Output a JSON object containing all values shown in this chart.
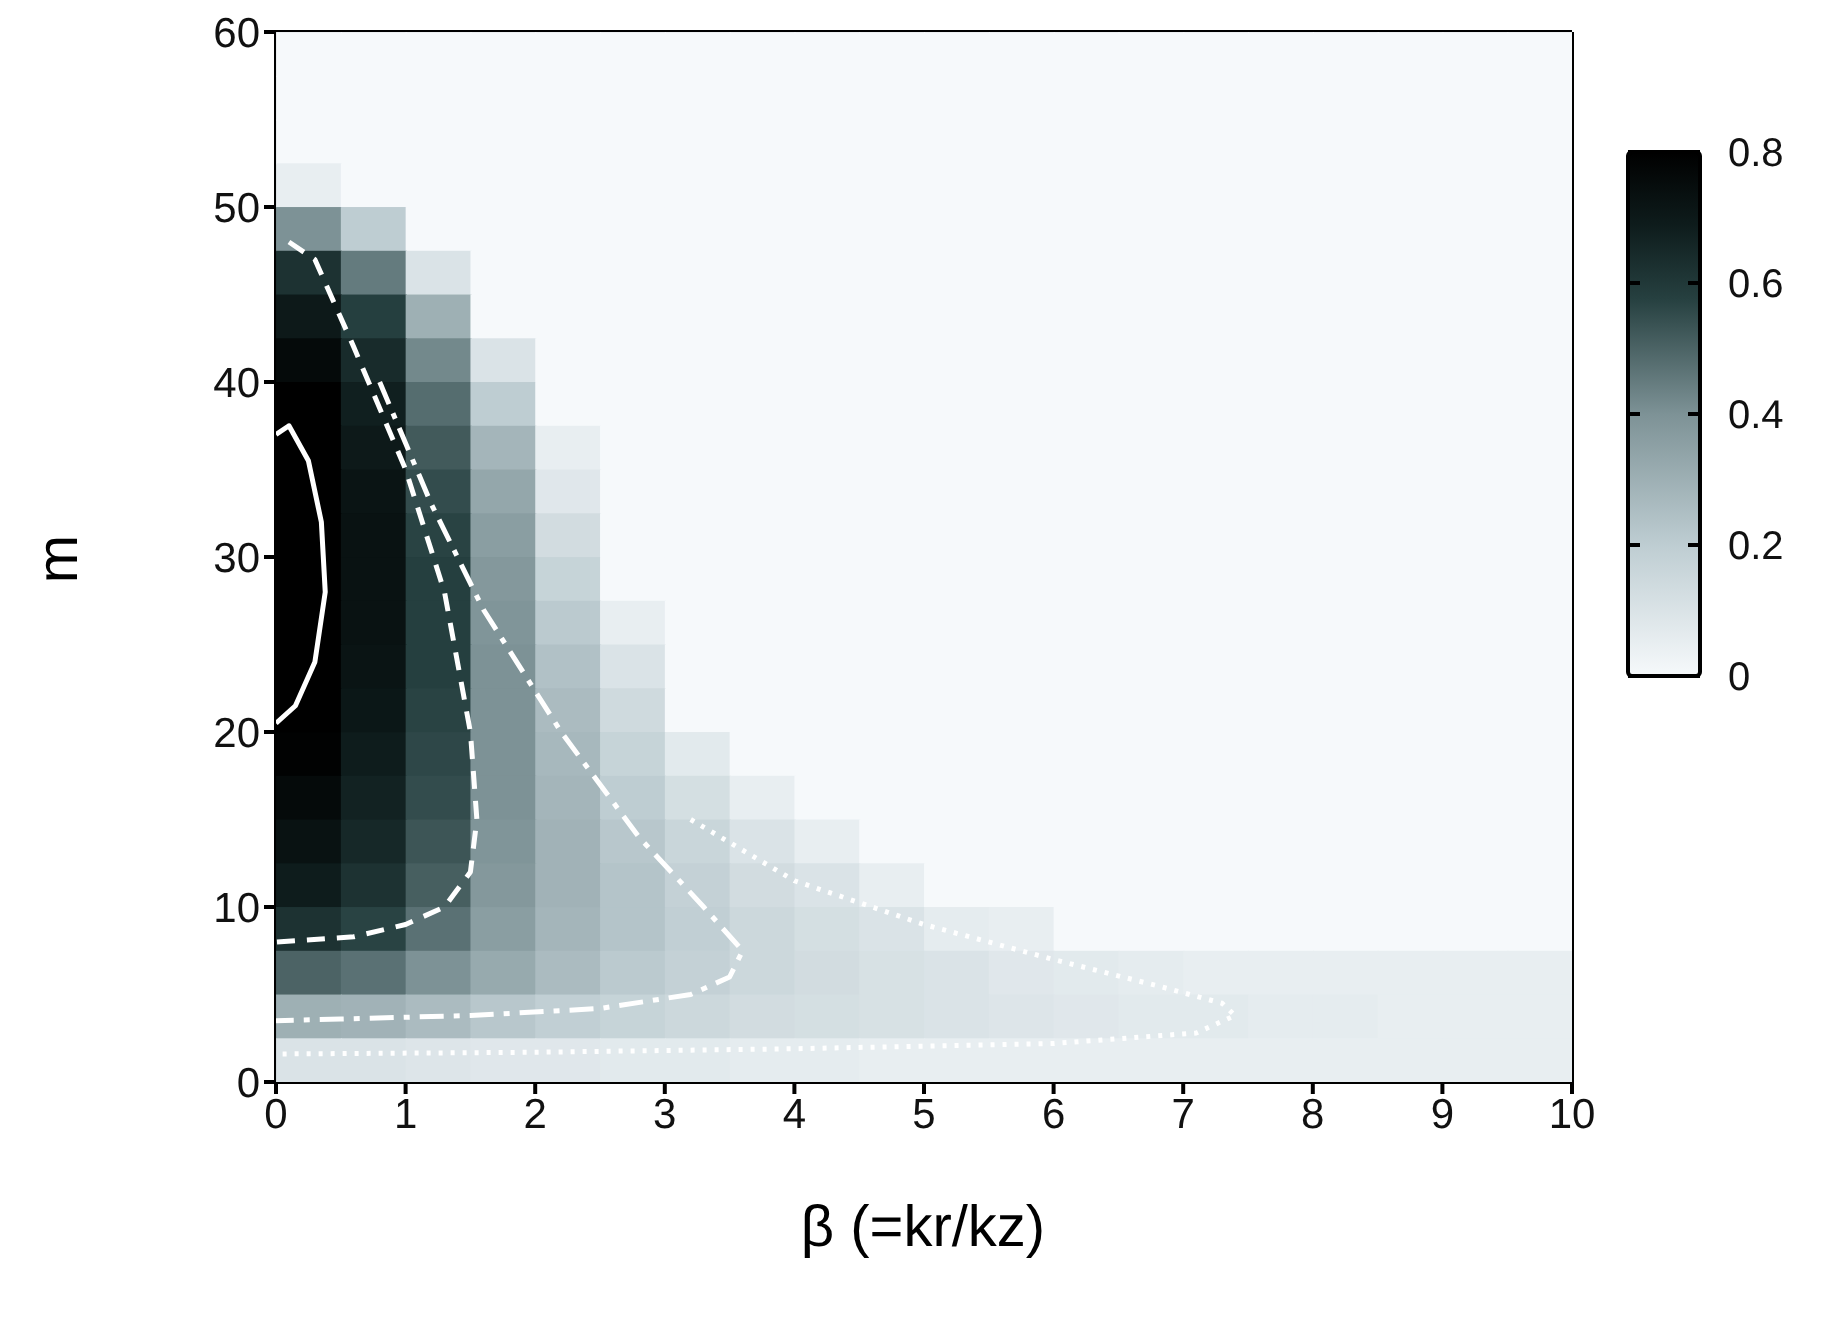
{
  "chart_data": {
    "type": "heatmap",
    "xlabel": "β (=kr/kz)",
    "ylabel": "m",
    "xlim": [
      0,
      10
    ],
    "xticks": [
      0,
      1,
      2,
      3,
      4,
      5,
      6,
      7,
      8,
      9,
      10
    ],
    "ylim": [
      0,
      60
    ],
    "yticks": [
      0,
      10,
      20,
      30,
      40,
      50,
      60
    ],
    "clim": [
      0,
      0.8
    ],
    "cticks": [
      0,
      0.2,
      0.4,
      0.6,
      0.8
    ],
    "cells": [
      [
        0,
        0,
        0,
        0,
        0,
        0,
        0,
        0,
        0,
        0,
        0,
        0,
        0,
        0,
        0,
        0,
        0,
        0,
        0,
        0
      ],
      [
        0,
        0,
        0,
        0,
        0,
        0,
        0,
        0,
        0,
        0,
        0,
        0,
        0,
        0,
        0,
        0,
        0,
        0,
        0,
        0
      ],
      [
        0,
        0,
        0,
        0,
        0,
        0,
        0,
        0,
        0,
        0,
        0,
        0,
        0,
        0,
        0,
        0,
        0,
        0,
        0,
        0
      ],
      [
        0.05,
        0,
        0,
        0,
        0,
        0,
        0,
        0,
        0,
        0,
        0,
        0,
        0,
        0,
        0,
        0,
        0,
        0,
        0,
        0
      ],
      [
        0.4,
        0.2,
        0,
        0,
        0,
        0,
        0,
        0,
        0,
        0,
        0,
        0,
        0,
        0,
        0,
        0,
        0,
        0,
        0,
        0
      ],
      [
        0.62,
        0.45,
        0.1,
        0,
        0,
        0,
        0,
        0,
        0,
        0,
        0,
        0,
        0,
        0,
        0,
        0,
        0,
        0,
        0,
        0
      ],
      [
        0.7,
        0.58,
        0.3,
        0,
        0,
        0,
        0,
        0,
        0,
        0,
        0,
        0,
        0,
        0,
        0,
        0,
        0,
        0,
        0,
        0
      ],
      [
        0.76,
        0.64,
        0.42,
        0.1,
        0,
        0,
        0,
        0,
        0,
        0,
        0,
        0,
        0,
        0,
        0,
        0,
        0,
        0,
        0,
        0
      ],
      [
        0.8,
        0.68,
        0.48,
        0.2,
        0,
        0,
        0,
        0,
        0,
        0,
        0,
        0,
        0,
        0,
        0,
        0,
        0,
        0,
        0,
        0
      ],
      [
        0.8,
        0.7,
        0.52,
        0.28,
        0.05,
        0,
        0,
        0,
        0,
        0,
        0,
        0,
        0,
        0,
        0,
        0,
        0,
        0,
        0,
        0
      ],
      [
        0.8,
        0.72,
        0.55,
        0.33,
        0.08,
        0,
        0,
        0,
        0,
        0,
        0,
        0,
        0,
        0,
        0,
        0,
        0,
        0,
        0,
        0
      ],
      [
        0.8,
        0.73,
        0.57,
        0.36,
        0.13,
        0,
        0,
        0,
        0,
        0,
        0,
        0,
        0,
        0,
        0,
        0,
        0,
        0,
        0,
        0
      ],
      [
        0.8,
        0.73,
        0.58,
        0.38,
        0.17,
        0,
        0,
        0,
        0,
        0,
        0,
        0,
        0,
        0,
        0,
        0,
        0,
        0,
        0,
        0
      ],
      [
        0.8,
        0.73,
        0.58,
        0.39,
        0.21,
        0.05,
        0,
        0,
        0,
        0,
        0,
        0,
        0,
        0,
        0,
        0,
        0,
        0,
        0,
        0
      ],
      [
        0.8,
        0.72,
        0.58,
        0.4,
        0.24,
        0.1,
        0,
        0,
        0,
        0,
        0,
        0,
        0,
        0,
        0,
        0,
        0,
        0,
        0,
        0
      ],
      [
        0.8,
        0.71,
        0.57,
        0.4,
        0.26,
        0.14,
        0,
        0,
        0,
        0,
        0,
        0,
        0,
        0,
        0,
        0,
        0,
        0,
        0,
        0
      ],
      [
        0.79,
        0.69,
        0.56,
        0.4,
        0.27,
        0.17,
        0.07,
        0,
        0,
        0,
        0,
        0,
        0,
        0,
        0,
        0,
        0,
        0,
        0,
        0
      ],
      [
        0.76,
        0.67,
        0.55,
        0.4,
        0.28,
        0.2,
        0.12,
        0.05,
        0,
        0,
        0,
        0,
        0,
        0,
        0,
        0,
        0,
        0,
        0,
        0
      ],
      [
        0.73,
        0.65,
        0.53,
        0.39,
        0.29,
        0.22,
        0.16,
        0.1,
        0.05,
        0,
        0,
        0,
        0,
        0,
        0,
        0,
        0,
        0,
        0,
        0
      ],
      [
        0.69,
        0.62,
        0.51,
        0.38,
        0.29,
        0.23,
        0.18,
        0.13,
        0.1,
        0.05,
        0,
        0,
        0,
        0,
        0,
        0,
        0,
        0,
        0,
        0
      ],
      [
        0.62,
        0.57,
        0.47,
        0.36,
        0.28,
        0.23,
        0.19,
        0.15,
        0.12,
        0.1,
        0.06,
        0.05,
        0,
        0,
        0,
        0,
        0,
        0,
        0,
        0
      ],
      [
        0.5,
        0.47,
        0.4,
        0.32,
        0.26,
        0.21,
        0.18,
        0.15,
        0.13,
        0.11,
        0.1,
        0.08,
        0.07,
        0.06,
        0.05,
        0.05,
        0.05,
        0.05,
        0.05,
        0.05
      ],
      [
        0.3,
        0.29,
        0.26,
        0.22,
        0.19,
        0.17,
        0.15,
        0.13,
        0.12,
        0.11,
        0.1,
        0.09,
        0.08,
        0.07,
        0.07,
        0.06,
        0.06,
        0.05,
        0.05,
        0.05
      ],
      [
        0.1,
        0.1,
        0.09,
        0.08,
        0.08,
        0.07,
        0.07,
        0.06,
        0.06,
        0.05,
        0.05,
        0.05,
        0.05,
        0.05,
        0.05,
        0.05,
        0.05,
        0.05,
        0.05,
        0.05
      ]
    ],
    "series": [
      {
        "type": "line",
        "color": "#ffffff",
        "line_style": "solid",
        "x": [
          0,
          0.15,
          0.3,
          0.38,
          0.35,
          0.25,
          0.1,
          0
        ],
        "values": [
          20.5,
          21.5,
          24,
          28,
          32,
          35.5,
          37.5,
          37
        ]
      },
      {
        "type": "line",
        "color": "#ffffff",
        "line_style": "dashed",
        "x": [
          0.1,
          0.3,
          0.6,
          1.0,
          1.3,
          1.5,
          1.55,
          1.5,
          1.3,
          1.0,
          0.6,
          0
        ],
        "values": [
          48,
          47,
          42,
          35,
          28,
          20,
          15,
          12,
          10,
          9,
          8.3,
          8
        ]
      },
      {
        "type": "line",
        "color": "#ffffff",
        "line_style": "dashdot",
        "x": [
          0.8,
          1.2,
          1.6,
          2.2,
          2.8,
          3.3,
          3.6,
          3.5,
          3.2,
          2.5,
          1.5,
          0.5,
          0
        ],
        "values": [
          40,
          33,
          27,
          20,
          14,
          10,
          7.5,
          6,
          5,
          4.2,
          3.8,
          3.6,
          3.5
        ]
      },
      {
        "type": "line",
        "color": "#ffffff",
        "line_style": "dotted",
        "x": [
          3.2,
          4,
          5,
          6,
          6.8,
          7.3,
          7.4,
          7.1,
          6,
          4,
          2,
          0
        ],
        "values": [
          15,
          11.5,
          9,
          7,
          5.5,
          4.5,
          3.8,
          2.8,
          2.2,
          1.9,
          1.7,
          1.6
        ]
      }
    ]
  }
}
